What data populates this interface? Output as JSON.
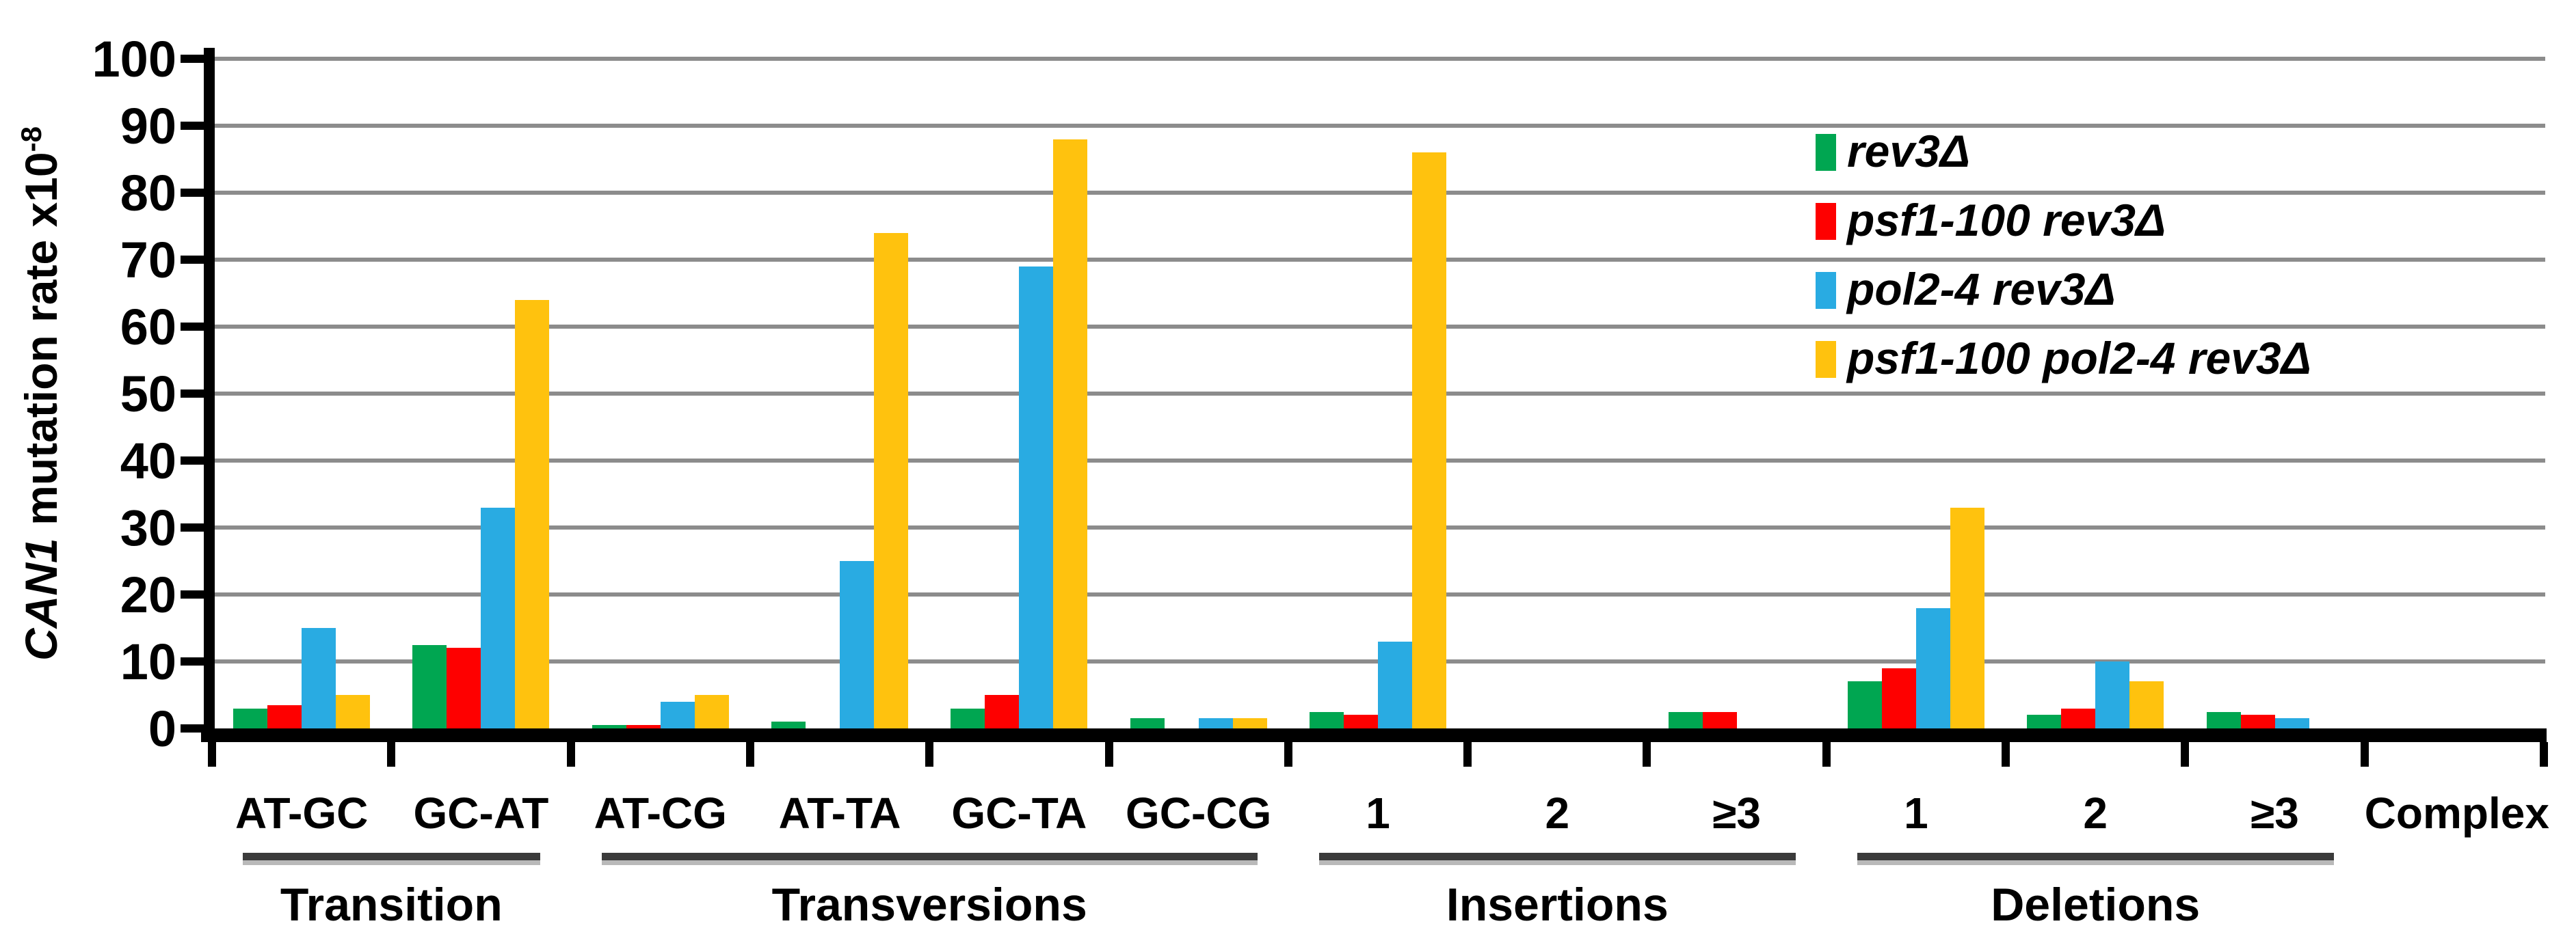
{
  "figure": {
    "background": "#FFFFFF"
  },
  "y_axis": {
    "title_italic": "CAN1",
    "title_rest": " mutation rate x10",
    "title_superscript": "-8",
    "tick_labels": [
      "0",
      "10",
      "20",
      "30",
      "40",
      "50",
      "60",
      "70",
      "80",
      "90",
      "100"
    ]
  },
  "chart_data": {
    "type": "bar",
    "title": "",
    "xlabel": "",
    "ylabel": "CAN1 mutation rate x10^-8",
    "ylim": [
      0,
      100
    ],
    "ytick_step": 10,
    "grid": true,
    "legend_position": "upper right",
    "categories": [
      "AT-GC",
      "GC-AT",
      "AT-CG",
      "AT-TA",
      "GC-TA",
      "GC-CG",
      "1",
      "2",
      "≥3",
      "1",
      "2",
      "≥3",
      "Complex"
    ],
    "category_groups": [
      {
        "label": "Transition",
        "start": 0,
        "end": 1,
        "underline": true
      },
      {
        "label": "Transversions",
        "start": 2,
        "end": 5,
        "underline": true
      },
      {
        "label": "Insertions",
        "start": 6,
        "end": 8,
        "underline": true
      },
      {
        "label": "Deletions",
        "start": 9,
        "end": 11,
        "underline": true
      }
    ],
    "series": [
      {
        "name": "rev3Δ",
        "color": "#00A651",
        "values": [
          3,
          12.5,
          0.5,
          1,
          3,
          1.5,
          2.5,
          0,
          2.5,
          7,
          2,
          2.5,
          0
        ]
      },
      {
        "name": "psf1-100 rev3Δ",
        "color": "#FE0000",
        "values": [
          3.5,
          12,
          0.5,
          0,
          5,
          0,
          2,
          0,
          2.5,
          9,
          3,
          2,
          0
        ]
      },
      {
        "name": "pol2-4 rev3Δ",
        "color": "#29ABE2",
        "values": [
          15,
          33,
          4,
          25,
          69,
          1.5,
          13,
          0,
          0,
          18,
          10,
          1.5,
          0
        ]
      },
      {
        "name": "psf1-100 pol2-4 rev3Δ",
        "color": "#FFC20E",
        "values": [
          5,
          64,
          5,
          74,
          88,
          1.5,
          86,
          0,
          0,
          33,
          7,
          0,
          0
        ]
      }
    ]
  },
  "colors": {
    "gridline": "#8C8C8C",
    "axis": "#000000",
    "group_underline": "#3B3B3B"
  }
}
